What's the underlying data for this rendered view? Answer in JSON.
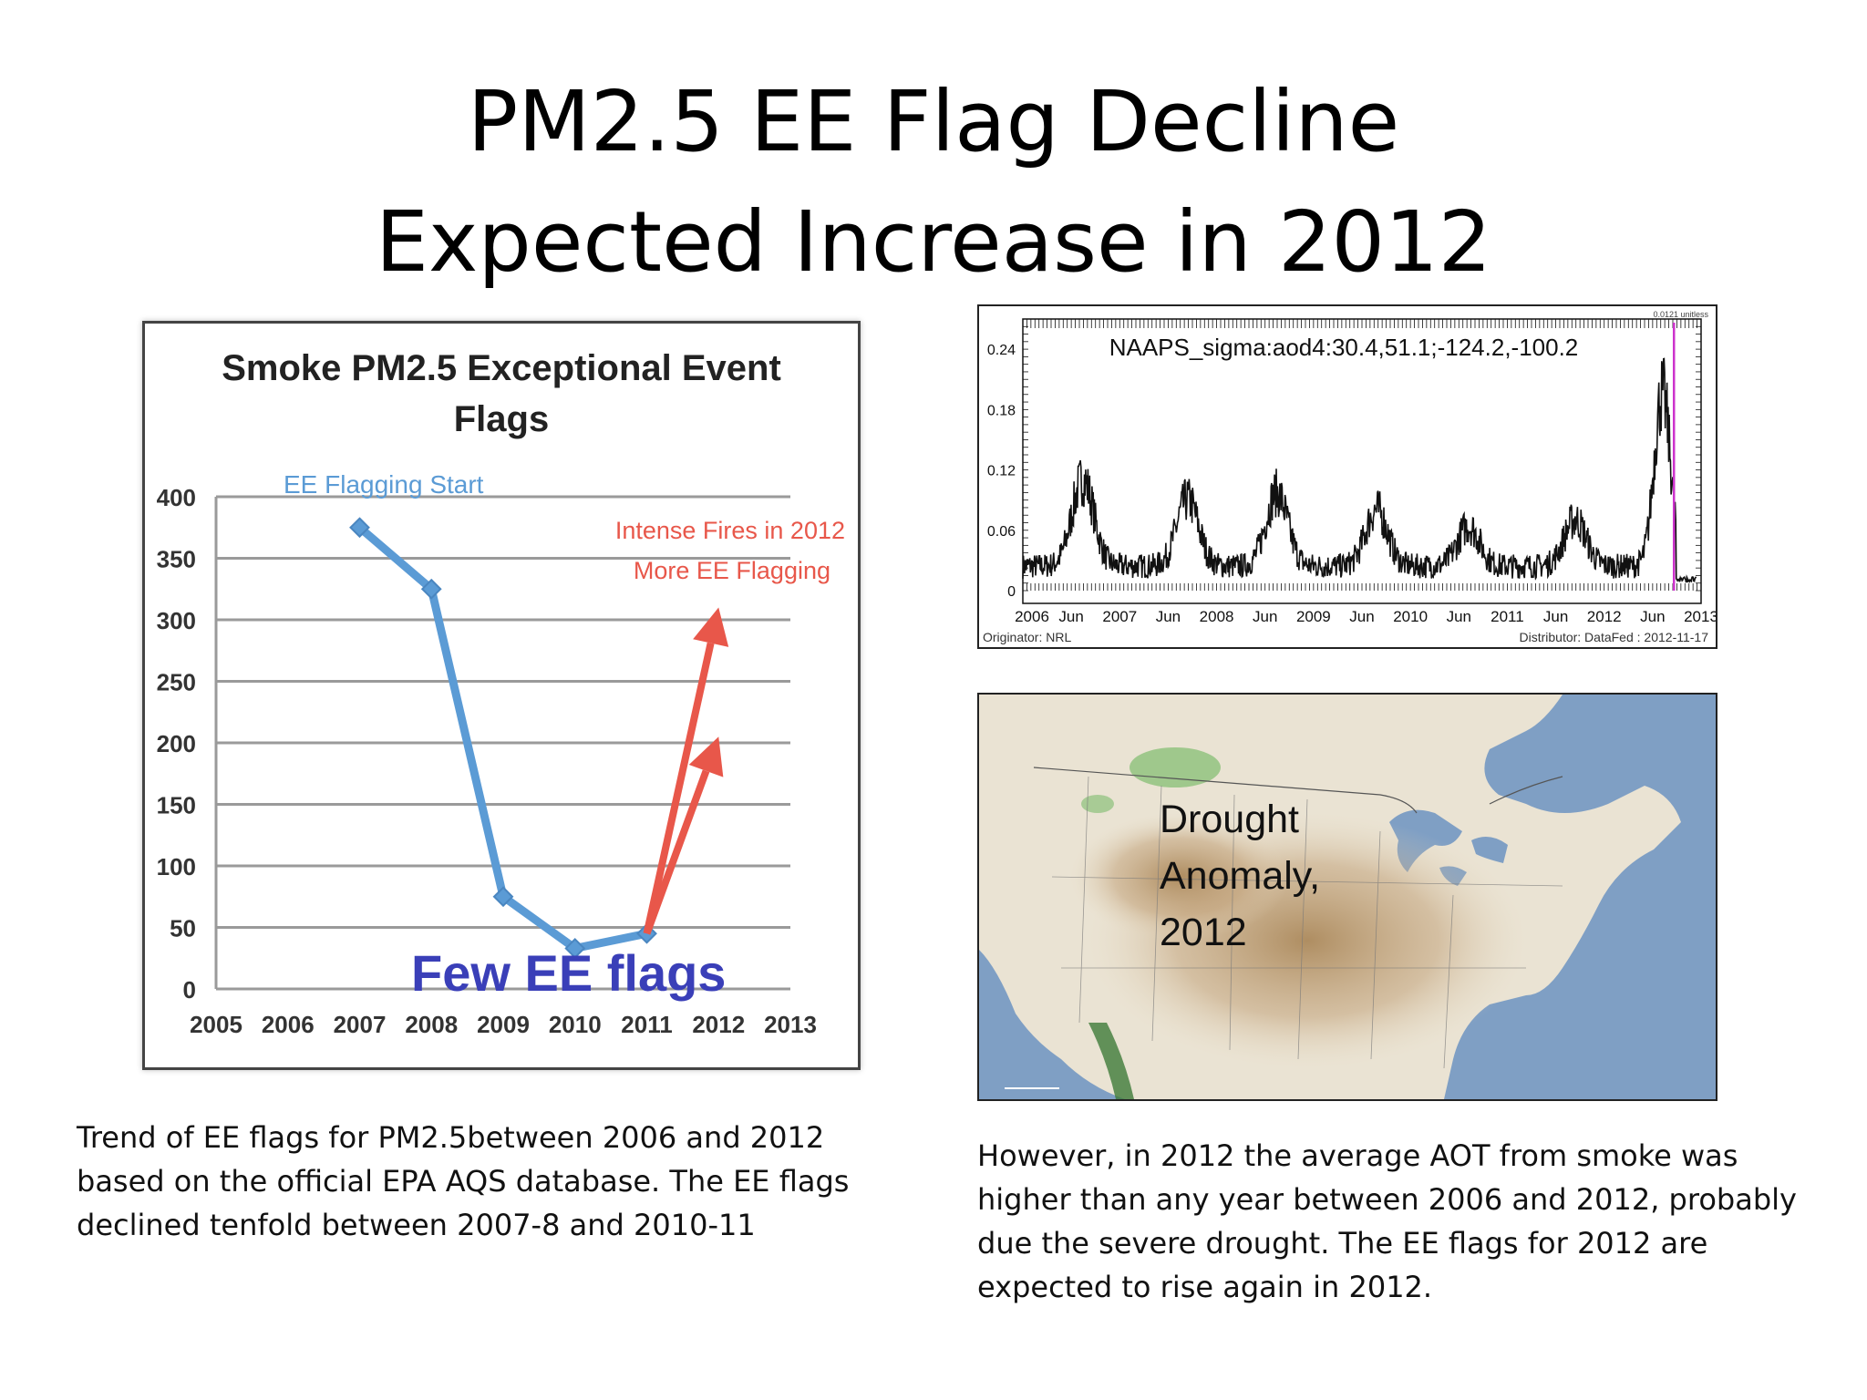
{
  "slide": {
    "title_line1": "PM2.5 EE Flag Decline",
    "title_line2": "Expected Increase in 2012"
  },
  "chart_data": [
    {
      "type": "line",
      "title_line1": "Smoke PM2.5 Exceptional Event",
      "title_line2": "Flags",
      "x": [
        2005,
        2006,
        2007,
        2008,
        2009,
        2010,
        2011,
        2012,
        2013
      ],
      "x_ticks": [
        "2005",
        "2006",
        "2007",
        "2008",
        "2009",
        "2010",
        "2011",
        "2012",
        "2013"
      ],
      "y_ticks": [
        "0",
        "50",
        "100",
        "150",
        "200",
        "250",
        "300",
        "350",
        "400"
      ],
      "ylim": [
        0,
        400
      ],
      "xlim": [
        2005,
        2013
      ],
      "grid": true,
      "series": [
        {
          "color": "#5b9bd5",
          "points": [
            [
              2007,
              375
            ],
            [
              2008,
              325
            ],
            [
              2009,
              75
            ],
            [
              2010,
              33
            ],
            [
              2011,
              45
            ]
          ]
        }
      ],
      "arrows": [
        {
          "color": "#e8574a",
          "from": [
            2011,
            45
          ],
          "to": [
            2012,
            310
          ]
        },
        {
          "color": "#e8574a",
          "from": [
            2011,
            45
          ],
          "to": [
            2012,
            205
          ]
        }
      ],
      "annotations": {
        "flag_start": "EE Flagging Start",
        "fires_line1": "Intense Fires in 2012",
        "fires_line2": "More EE Flagging",
        "few_flags": "Few EE flags"
      },
      "annotation_colors": {
        "flag_start": "#5b9bd5",
        "fires": "#e8574a",
        "few_flags": "#3a3fb8"
      }
    },
    {
      "type": "line",
      "title": "NAAPS_sigma:aod4:30.4,51.1;-124.2,-100.2",
      "corner_label": "0.0121 unitless",
      "y_ticks": [
        "0",
        "0.06",
        "0.12",
        "0.18",
        "0.24"
      ],
      "ylim": [
        0,
        0.27
      ],
      "xlim": [
        2006,
        2013
      ],
      "x_ticks": [
        "2006",
        "Jun",
        "2007",
        "Jun",
        "2008",
        "Jun",
        "2009",
        "Jun",
        "2010",
        "Jun",
        "2011",
        "Jun",
        "2012",
        "Jun",
        "2013"
      ],
      "originator": "Originator: NRL",
      "distributor": "Distributor: DataFed : 2012-11-17",
      "series_color": "#111111",
      "marker_color": "#cc33cc",
      "marker_x": 2012.72
    }
  ],
  "map": {
    "label_line1": "Drought",
    "label_line2": "Anomaly,",
    "label_line3": "2012"
  },
  "captions": {
    "left": "Trend of EE flags for PM2.5between 2006 and 2012 based on the official EPA AQS database. The EE flags declined tenfold between 2007-8 and 2010-11",
    "right": "However, in 2012 the average AOT from  smoke was higher than any year between 2006 and 2012, probably due the severe drought. The EE flags for 2012 are expected to rise again in 2012."
  }
}
